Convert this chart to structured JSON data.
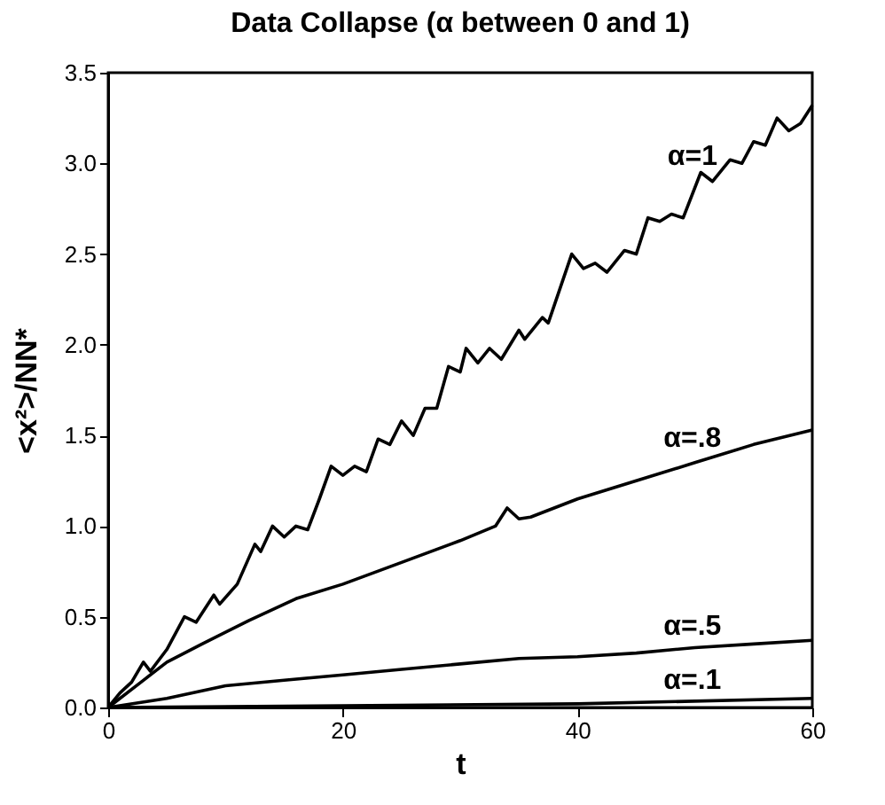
{
  "chart_data": {
    "type": "line",
    "title": "Data Collapse (α between 0 and 1)",
    "xlabel": "t",
    "ylabel": "<x²>/NN*",
    "xlim": [
      0,
      60
    ],
    "ylim": [
      0,
      3.5
    ],
    "xticks": [
      0,
      20,
      40,
      60
    ],
    "yticks": [
      {
        "value": 0,
        "label": "0.0"
      },
      0.5,
      {
        "value": 1,
        "label": "1.0"
      },
      1.5,
      {
        "value": 2,
        "label": "2.0"
      },
      2.5,
      {
        "value": 3,
        "label": "3.0"
      },
      3.5
    ],
    "grid": false,
    "legend": false,
    "marker": "none",
    "line_style": "solid",
    "series": [
      {
        "name": "α=1",
        "color": "#000000",
        "x": [
          0,
          1,
          2,
          3,
          3.6,
          5,
          6.5,
          7.5,
          9,
          9.5,
          11,
          12.5,
          13,
          14,
          15,
          16,
          17,
          18,
          19,
          20,
          21,
          22,
          23,
          24,
          25,
          26,
          27,
          28,
          29,
          30,
          30.5,
          31.5,
          32.5,
          33.5,
          35,
          35.5,
          37,
          37.5,
          39.5,
          40.5,
          41.5,
          42.5,
          44,
          45,
          46,
          47,
          48,
          49,
          50.5,
          51.5,
          53,
          54,
          55,
          56,
          57,
          58,
          59,
          60
        ],
        "values": [
          0,
          0.08,
          0.14,
          0.25,
          0.2,
          0.32,
          0.5,
          0.47,
          0.62,
          0.57,
          0.68,
          0.9,
          0.86,
          1.0,
          0.94,
          1.0,
          0.98,
          1.15,
          1.33,
          1.28,
          1.33,
          1.3,
          1.48,
          1.45,
          1.58,
          1.5,
          1.65,
          1.65,
          1.88,
          1.85,
          1.98,
          1.9,
          1.98,
          1.92,
          2.08,
          2.03,
          2.15,
          2.12,
          2.5,
          2.42,
          2.45,
          2.4,
          2.52,
          2.5,
          2.7,
          2.68,
          2.72,
          2.7,
          2.95,
          2.9,
          3.02,
          3.0,
          3.12,
          3.1,
          3.25,
          3.18,
          3.22,
          3.32
        ]
      },
      {
        "name": "α=.8",
        "color": "#000000",
        "x": [
          0,
          3,
          5,
          8,
          12,
          16,
          20,
          25,
          30,
          33,
          34,
          35,
          36,
          40,
          45,
          50,
          55,
          60
        ],
        "values": [
          0,
          0.15,
          0.25,
          0.35,
          0.48,
          0.6,
          0.68,
          0.8,
          0.92,
          1.0,
          1.1,
          1.04,
          1.05,
          1.15,
          1.25,
          1.35,
          1.45,
          1.53
        ]
      },
      {
        "name": "α=.5",
        "color": "#000000",
        "x": [
          0,
          5,
          10,
          15,
          20,
          25,
          30,
          35,
          40,
          45,
          50,
          55,
          60
        ],
        "values": [
          0,
          0.05,
          0.12,
          0.15,
          0.18,
          0.21,
          0.24,
          0.27,
          0.28,
          0.3,
          0.33,
          0.35,
          0.37
        ]
      },
      {
        "name": "α=.1",
        "color": "#000000",
        "x": [
          0,
          20,
          40,
          60
        ],
        "values": [
          0,
          0.01,
          0.02,
          0.05
        ]
      }
    ]
  }
}
